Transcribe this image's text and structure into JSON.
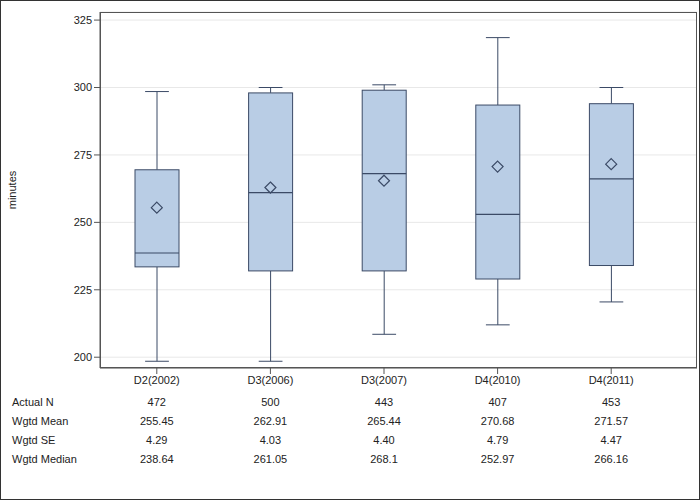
{
  "chart_data": {
    "type": "box",
    "y_label": "minutes",
    "categories": [
      "D2(2002)",
      "D3(2006)",
      "D3(2007)",
      "D4(2010)",
      "D4(2011)"
    ],
    "series": [
      {
        "low": [
          198.5,
          198.5,
          208.5,
          212,
          220.5
        ],
        "q1": [
          233.5,
          232,
          232,
          229,
          234
        ],
        "median": [
          238.64,
          261.05,
          268.1,
          252.97,
          266.16
        ],
        "q3": [
          269.5,
          298,
          299,
          293.5,
          294
        ],
        "high": [
          298.5,
          300,
          301,
          318.5,
          300
        ],
        "mean": [
          255.45,
          262.91,
          265.44,
          270.68,
          271.57
        ],
        "color": "#b9cde5",
        "marker": "diamond"
      }
    ],
    "ylim": [
      196,
      328
    ],
    "yticks": [
      200,
      225,
      250,
      275,
      300,
      325
    ],
    "grid": true
  },
  "table": {
    "rows": [
      {
        "label": "Actual N",
        "values": [
          "472",
          "500",
          "443",
          "407",
          "453"
        ]
      },
      {
        "label": "Wgtd Mean",
        "values": [
          "255.45",
          "262.91",
          "265.44",
          "270.68",
          "271.57"
        ]
      },
      {
        "label": "Wgtd SE",
        "values": [
          "4.29",
          "4.03",
          "4.40",
          "4.79",
          "4.47"
        ]
      },
      {
        "label": "Wgtd Median",
        "values": [
          "238.64",
          "261.05",
          "268.1",
          "252.97",
          "266.16"
        ]
      }
    ]
  }
}
